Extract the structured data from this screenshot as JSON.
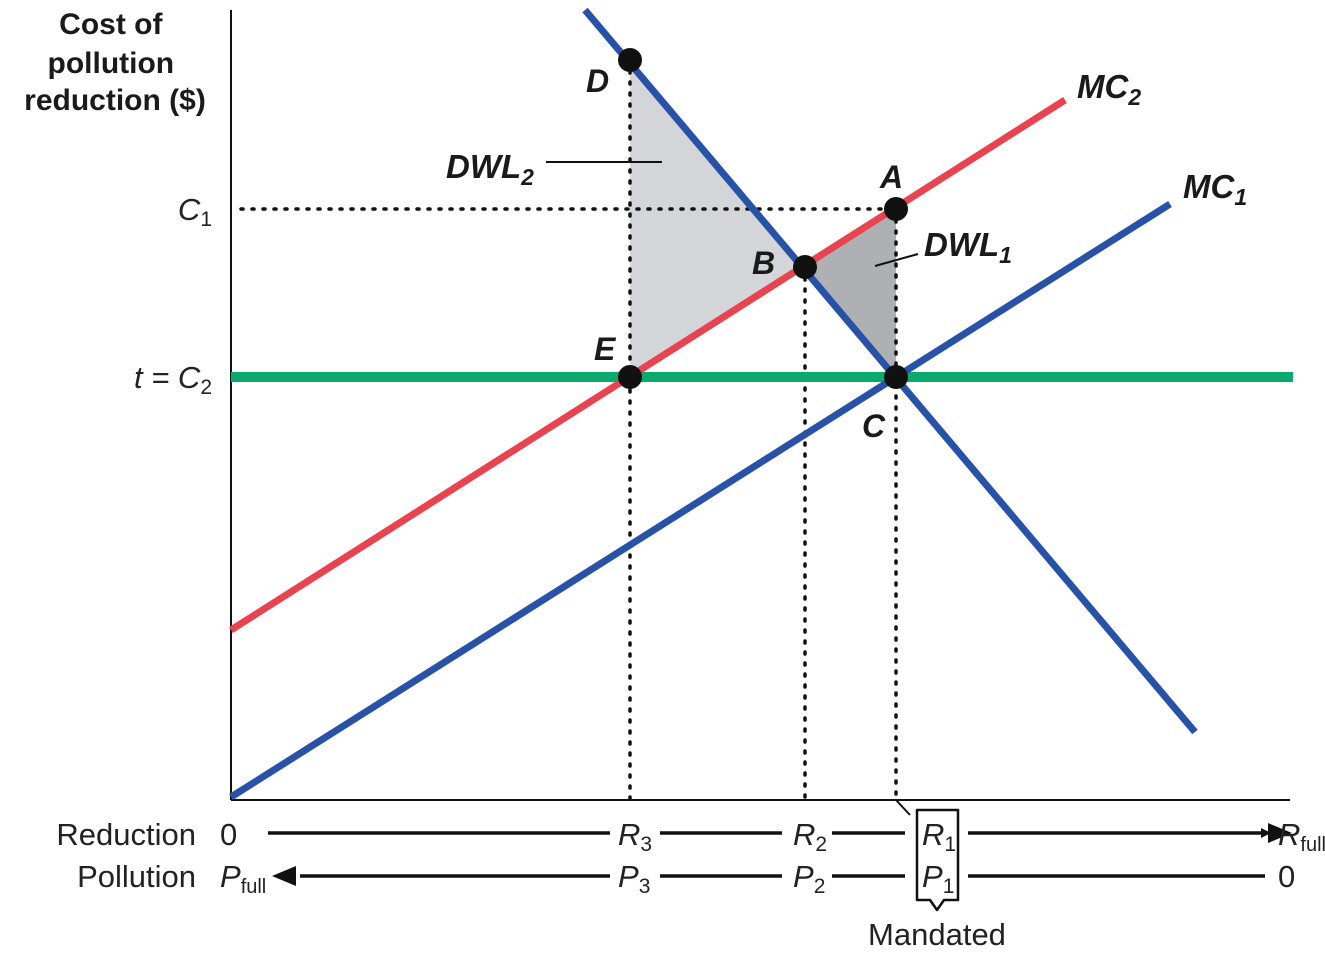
{
  "y_axis_title": [
    "Cost of",
    "pollution",
    "reduction ($)"
  ],
  "y_ticks": {
    "c1": {
      "main": "C",
      "sub": "1"
    },
    "t_c2": {
      "prefix": "t = ",
      "main": "C",
      "sub": "2"
    }
  },
  "points": {
    "A": "A",
    "B": "B",
    "C": "C",
    "D": "D",
    "E": "E"
  },
  "curves": {
    "mc1": {
      "main": "MC",
      "sub": "1",
      "color": "#2752a8"
    },
    "mc2": {
      "main": "MC",
      "sub": "2",
      "color": "#e8434f"
    },
    "tax_line_color": "#0aaa6e"
  },
  "regions": {
    "dwl1": {
      "main": "DWL",
      "sub": "1",
      "color": "#aeb0b3"
    },
    "dwl2": {
      "main": "DWL",
      "sub": "2",
      "color": "#d3d5d8"
    }
  },
  "demand_color": "#2752a8",
  "reduction_axis": {
    "label": "Reduction",
    "start": "0",
    "r3": {
      "main": "R",
      "sub": "3"
    },
    "r2": {
      "main": "R",
      "sub": "2"
    },
    "r1": {
      "main": "R",
      "sub": "1"
    },
    "end": {
      "main": "R",
      "sub": "full"
    }
  },
  "pollution_axis": {
    "label": "Pollution",
    "start": {
      "main": "P",
      "sub": "full"
    },
    "p3": {
      "main": "P",
      "sub": "3"
    },
    "p2": {
      "main": "P",
      "sub": "2"
    },
    "p1": {
      "main": "P",
      "sub": "1"
    },
    "end": "0"
  },
  "mandated_label": "Mandated"
}
